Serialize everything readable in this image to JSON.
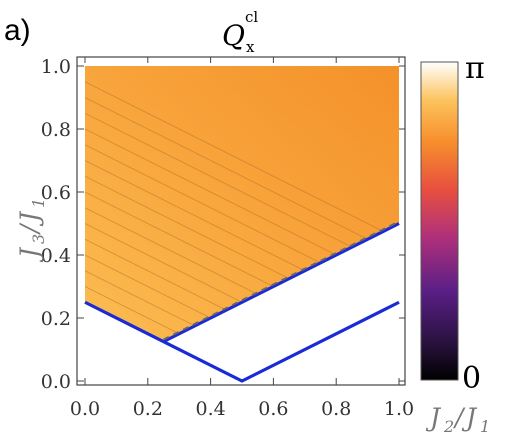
{
  "panel_label": "a)",
  "chart_data": {
    "type": "heatmap",
    "title": {
      "main": "Q",
      "superscript": "cl",
      "subscript": "x"
    },
    "xlabel": {
      "num": "J",
      "num_sub": "2",
      "den": "J",
      "den_sub": "1"
    },
    "ylabel": {
      "num": "J",
      "num_sub": "3",
      "den": "J",
      "den_sub": "1"
    },
    "xlim": [
      0,
      1
    ],
    "ylim": [
      0,
      1
    ],
    "xticks": [
      "0.0",
      "0.2",
      "0.4",
      "0.6",
      "0.8",
      "1.0"
    ],
    "yticks": [
      "0.0",
      "0.2",
      "0.4",
      "0.6",
      "0.8",
      "1.0"
    ],
    "colorbar": {
      "min_label": "0",
      "max_label": "π",
      "min": 0,
      "max": 3.14159
    },
    "value_region": {
      "boundary": [
        [
          0,
          0.25
        ],
        [
          0.25,
          0.125
        ],
        [
          1,
          0.5
        ],
        [
          1,
          1
        ],
        [
          0,
          1
        ]
      ],
      "approx_value": 2.1
    },
    "contour_count": 14,
    "boundary_lines": [
      {
        "color": "#1a2bd6",
        "points": [
          [
            0,
            0.25
          ],
          [
            0.5,
            0
          ],
          [
            1,
            0.25
          ]
        ]
      },
      {
        "color": "#1a2bd6",
        "points": [
          [
            0.25,
            0.125
          ],
          [
            1,
            0.5
          ]
        ]
      }
    ],
    "colors": {
      "boundary": "#1a2bd6",
      "fill_dark": "#f6982a",
      "fill_light": "#fab94c"
    }
  }
}
